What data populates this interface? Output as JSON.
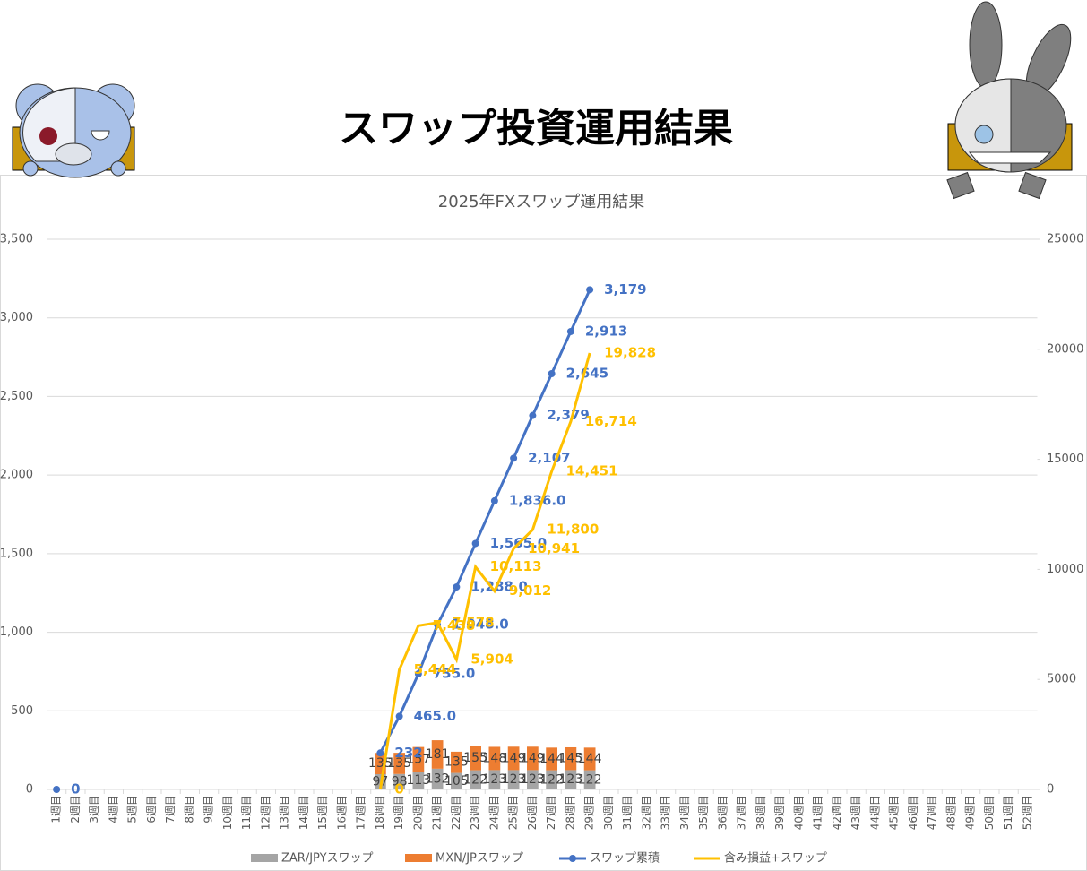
{
  "header": {
    "title": "スワップ投資運用結果"
  },
  "chart_data": {
    "type": "combo",
    "title": "2025年FXスワップ運用結果",
    "categories": [
      "1週目",
      "2週目",
      "3週目",
      "4週目",
      "5週目",
      "6週目",
      "7週目",
      "8週目",
      "9週目",
      "10週目",
      "11週目",
      "12週目",
      "13週目",
      "14週目",
      "15週目",
      "16週目",
      "17週目",
      "18週目",
      "19週目",
      "20週目",
      "21週目",
      "22週目",
      "23週目",
      "24週目",
      "25週目",
      "26週目",
      "27週目",
      "28週目",
      "29週目",
      "30週目",
      "31週目",
      "32週目",
      "33週目",
      "34週目",
      "35週目",
      "36週目",
      "37週目",
      "38週目",
      "39週目",
      "40週目",
      "41週目",
      "42週目",
      "43週目",
      "44週目",
      "45週目",
      "46週目",
      "47週目",
      "48週目",
      "49週目",
      "50週目",
      "51週目",
      "52週目"
    ],
    "series": [
      {
        "name": "ZAR/JPYスワップ",
        "type": "bar",
        "color": "#a5a5a5",
        "values": [
          null,
          null,
          null,
          null,
          null,
          null,
          null,
          null,
          null,
          null,
          null,
          null,
          null,
          null,
          null,
          null,
          null,
          97,
          98,
          113,
          132,
          105,
          122,
          123,
          123,
          123,
          122,
          123,
          122,
          null,
          null,
          null,
          null,
          null,
          null,
          null,
          null,
          null,
          null,
          null,
          null,
          null,
          null,
          null,
          null,
          null,
          null,
          null,
          null,
          null,
          null,
          null
        ]
      },
      {
        "name": "MXN/JPスワップ",
        "type": "bar",
        "color": "#ed7d31",
        "values": [
          null,
          null,
          null,
          null,
          null,
          null,
          null,
          null,
          null,
          null,
          null,
          null,
          null,
          null,
          null,
          null,
          null,
          135,
          135,
          157,
          181,
          135,
          155,
          148,
          149,
          149,
          144,
          145,
          144,
          null,
          null,
          null,
          null,
          null,
          null,
          null,
          null,
          null,
          null,
          null,
          null,
          null,
          null,
          null,
          null,
          null,
          null,
          null,
          null,
          null,
          null,
          null
        ]
      },
      {
        "name": "スワップ累積",
        "type": "line",
        "color": "#4472c4",
        "values": [
          0,
          null,
          null,
          null,
          null,
          null,
          null,
          null,
          null,
          null,
          null,
          null,
          null,
          null,
          null,
          null,
          null,
          232,
          465,
          735,
          1048,
          1288,
          1565,
          1836,
          2107,
          2379,
          2645,
          2913,
          3179,
          null,
          null,
          null,
          null,
          null,
          null,
          null,
          null,
          null,
          null,
          null,
          null,
          null,
          null,
          null,
          null,
          null,
          null,
          null,
          null,
          null,
          null,
          null
        ],
        "value_labels": [
          "0",
          null,
          null,
          null,
          null,
          null,
          null,
          null,
          null,
          null,
          null,
          null,
          null,
          null,
          null,
          null,
          null,
          "232",
          "465.0",
          "735.0",
          "1,048.0",
          "1,288.0",
          "1,565.0",
          "1,836.0",
          "2,107",
          "2,379",
          "2,645",
          "2,913",
          "3,179",
          null,
          null,
          null,
          null,
          null,
          null,
          null,
          null,
          null,
          null,
          null,
          null,
          null,
          null,
          null,
          null,
          null,
          null,
          null,
          null,
          null,
          null,
          null
        ]
      },
      {
        "name": "含み損益+スワップ",
        "type": "line",
        "axis": "y2",
        "color": "#ffc000",
        "values": [
          null,
          null,
          null,
          null,
          null,
          null,
          null,
          null,
          null,
          null,
          null,
          null,
          null,
          null,
          null,
          null,
          null,
          0,
          5444,
          7438,
          7578,
          5904,
          10113,
          9012,
          10941,
          11800,
          14451,
          16714,
          19828,
          null,
          null,
          null,
          null,
          null,
          null,
          null,
          null,
          null,
          null,
          null,
          null,
          null,
          null,
          null,
          null,
          null,
          null,
          null,
          null,
          null,
          null,
          null
        ],
        "value_labels": [
          null,
          null,
          null,
          null,
          null,
          null,
          null,
          null,
          null,
          null,
          null,
          null,
          null,
          null,
          null,
          null,
          null,
          "0",
          "5,444",
          "7,438",
          "7,578",
          "5,904",
          "10,113",
          "9,012",
          "10,941",
          "11,800",
          "14,451",
          "16,714",
          "19,828",
          null,
          null,
          null,
          null,
          null,
          null,
          null,
          null,
          null,
          null,
          null,
          null,
          null,
          null,
          null,
          null,
          null,
          null,
          null,
          null,
          null,
          null,
          null
        ]
      }
    ],
    "ylim": [
      0,
      3500
    ],
    "yticks": [
      0,
      500,
      {
        "value": 1000,
        "label": "1,000"
      },
      {
        "value": 1500,
        "label": "1,500"
      },
      {
        "value": 2000,
        "label": "2,000"
      },
      {
        "value": 2500,
        "label": "2,500"
      },
      {
        "value": 3000,
        "label": "3,000"
      },
      {
        "value": 3500,
        "label": "3,500"
      }
    ],
    "y2lim": [
      0,
      25000
    ],
    "y2ticks": [
      0,
      5000,
      10000,
      15000,
      20000,
      25000
    ],
    "grid": true,
    "legend": "bottom"
  }
}
